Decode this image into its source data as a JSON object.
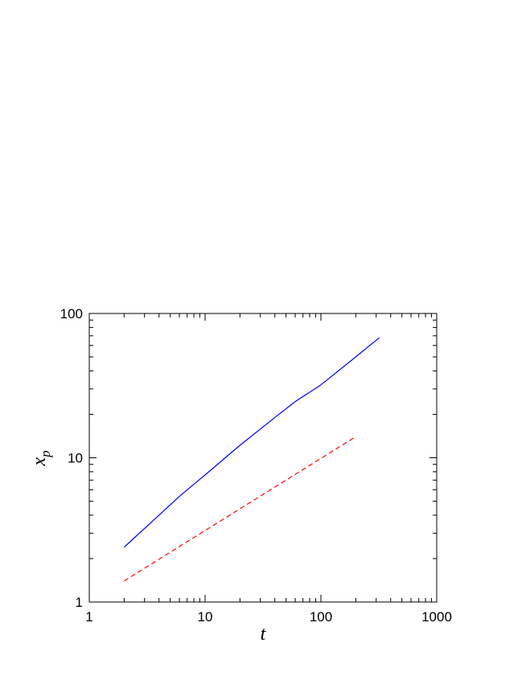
{
  "chart_data": {
    "type": "line",
    "title": "",
    "xlabel": "t",
    "ylabel": {
      "base": "x",
      "subscript": "p"
    },
    "x_scale": "log",
    "y_scale": "log",
    "xlim": [
      1,
      1000
    ],
    "ylim": [
      1,
      100
    ],
    "x_ticks": [
      1,
      10,
      100,
      1000
    ],
    "x_tick_labels": [
      "1",
      "10",
      "100",
      "1000"
    ],
    "y_ticks": [
      1,
      10,
      100
    ],
    "y_tick_labels": [
      "1",
      "10",
      "100"
    ],
    "grid": false,
    "legend": "none",
    "series": [
      {
        "color": "#0000ff",
        "dash": "solid",
        "x": [
          2,
          4,
          6,
          10,
          20,
          40,
          60,
          100,
          200,
          320
        ],
        "y": [
          2.4,
          4.0,
          5.4,
          7.6,
          12.2,
          19.0,
          24.5,
          32.0,
          50.0,
          68.0
        ]
      },
      {
        "color": "#ff0000",
        "dash": "dashed",
        "x": [
          2,
          200
        ],
        "y": [
          1.4,
          14.0
        ]
      }
    ]
  }
}
